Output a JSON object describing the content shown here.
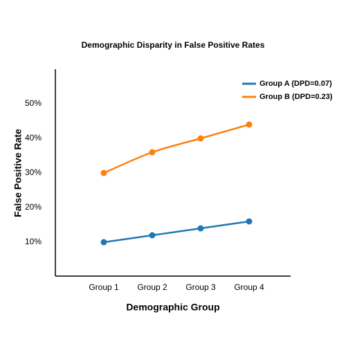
{
  "chart_data": {
    "type": "line",
    "title": "Demographic Disparity in False Positive Rates",
    "x_label": "Demographic Group",
    "y_label": "False Positive Rate",
    "categories": [
      "Group 1",
      "Group 2",
      "Group 3",
      "Group 4"
    ],
    "series": [
      {
        "name": "Group A (DPD=0.07)",
        "color": "#1f77b4",
        "values": [
          10,
          12,
          14,
          16
        ]
      },
      {
        "name": "Group B (DPD=0.23)",
        "color": "#ff7f0e",
        "values": [
          30,
          36,
          40,
          44
        ]
      }
    ],
    "ylim": [
      0,
      60
    ],
    "yticks": [
      {
        "value": 10,
        "label": "10%"
      },
      {
        "value": 20,
        "label": "20%"
      },
      {
        "value": 30,
        "label": "30%"
      },
      {
        "value": 40,
        "label": "40%"
      },
      {
        "value": 50,
        "label": "50%"
      }
    ],
    "grid": false,
    "legend": "upper-right"
  }
}
